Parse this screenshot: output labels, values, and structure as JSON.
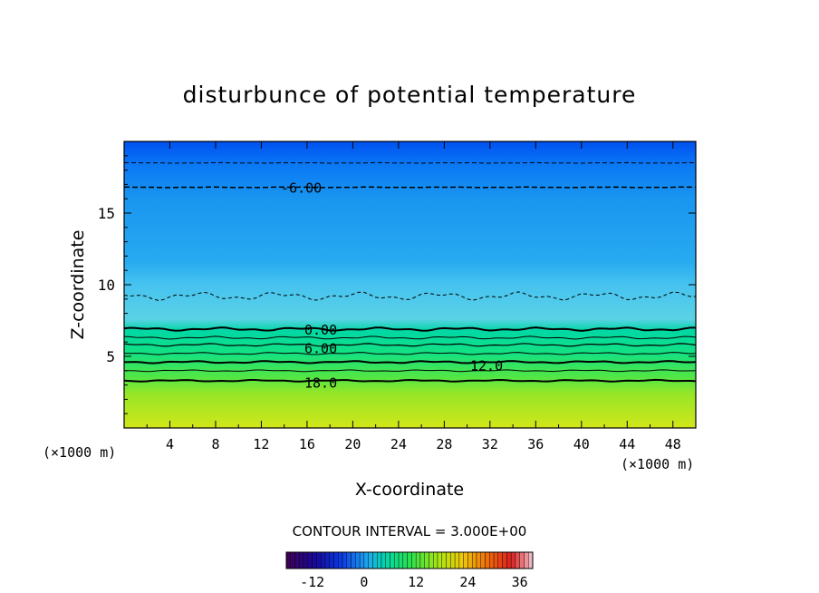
{
  "chart_data": {
    "type": "heatmap",
    "title": "disturbunce of potential temperature",
    "xlabel": "X-coordinate",
    "ylabel": "Z-coordinate",
    "x_unit": "(×1000 m)",
    "y_unit": "(×1000 m)",
    "xlim": [
      0,
      50
    ],
    "ylim": [
      0,
      20
    ],
    "x_ticks": [
      4,
      8,
      12,
      16,
      20,
      24,
      28,
      32,
      36,
      40,
      44,
      48
    ],
    "y_ticks": [
      5,
      10,
      15
    ],
    "contour_interval_text": "CONTOUR INTERVAL = 3.000E+00",
    "contour_labels": [
      {
        "text": "-6.00",
        "x": 15.5,
        "z": 16.8
      },
      {
        "text": "0.00",
        "x": 17.2,
        "z": 6.9
      },
      {
        "text": "6.00",
        "x": 17.2,
        "z": 5.6
      },
      {
        "text": "12.0",
        "x": 31.7,
        "z": 4.4
      },
      {
        "text": "18.0",
        "x": 17.2,
        "z": 3.2
      }
    ],
    "colorbar": {
      "range": [
        -18,
        39
      ],
      "ticks": [
        -12,
        0,
        12,
        24,
        36
      ]
    },
    "colors": {
      "top": "#0a5cf5",
      "upper": "#1e90f0",
      "middle": "#3cb4f5",
      "lower": "#00d2a0",
      "warm": "#3ce650",
      "bottom": "#c8e614"
    },
    "labels": {
      "x_ticks": [
        "4",
        "8",
        "12",
        "16",
        "20",
        "24",
        "28",
        "32",
        "36",
        "40",
        "44",
        "48"
      ],
      "y_ticks": [
        "5",
        "10",
        "15"
      ],
      "cb_ticks": [
        "-12",
        "0",
        "12",
        "24",
        "36"
      ]
    }
  }
}
